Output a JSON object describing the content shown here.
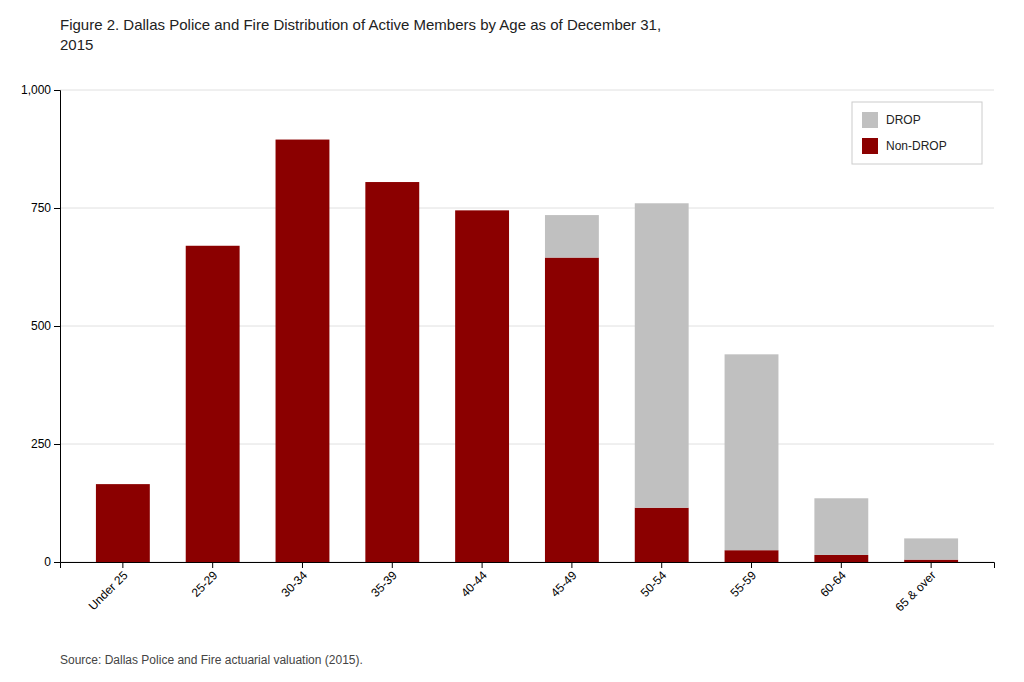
{
  "chart_data": {
    "type": "bar",
    "stacked": true,
    "title": "Figure 2. Dallas Police and Fire Distribution of Active Members by Age as of December 31,\n2015",
    "annotations": [
      "Source: Dallas Police and Fire actuarial valuation (2015)."
    ],
    "categories": [
      "Under 25",
      "25-29",
      "30-34",
      "35-39",
      "40-44",
      "45-49",
      "50-54",
      "55-59",
      "60-64",
      "65 & over"
    ],
    "series": [
      {
        "name": "Non-DROP",
        "color": "#8B0000",
        "values": [
          165,
          670,
          895,
          805,
          745,
          645,
          115,
          25,
          15,
          5
        ]
      },
      {
        "name": "DROP",
        "color": "#C0C0C0",
        "values": [
          0,
          0,
          0,
          0,
          0,
          90,
          645,
          415,
          120,
          45
        ]
      }
    ],
    "ylim": [
      0,
      1000
    ],
    "yticks": [
      0,
      250,
      500,
      750,
      {
        "value": 1000,
        "label": "1,000"
      }
    ],
    "grid": true,
    "legend": "upper right"
  }
}
